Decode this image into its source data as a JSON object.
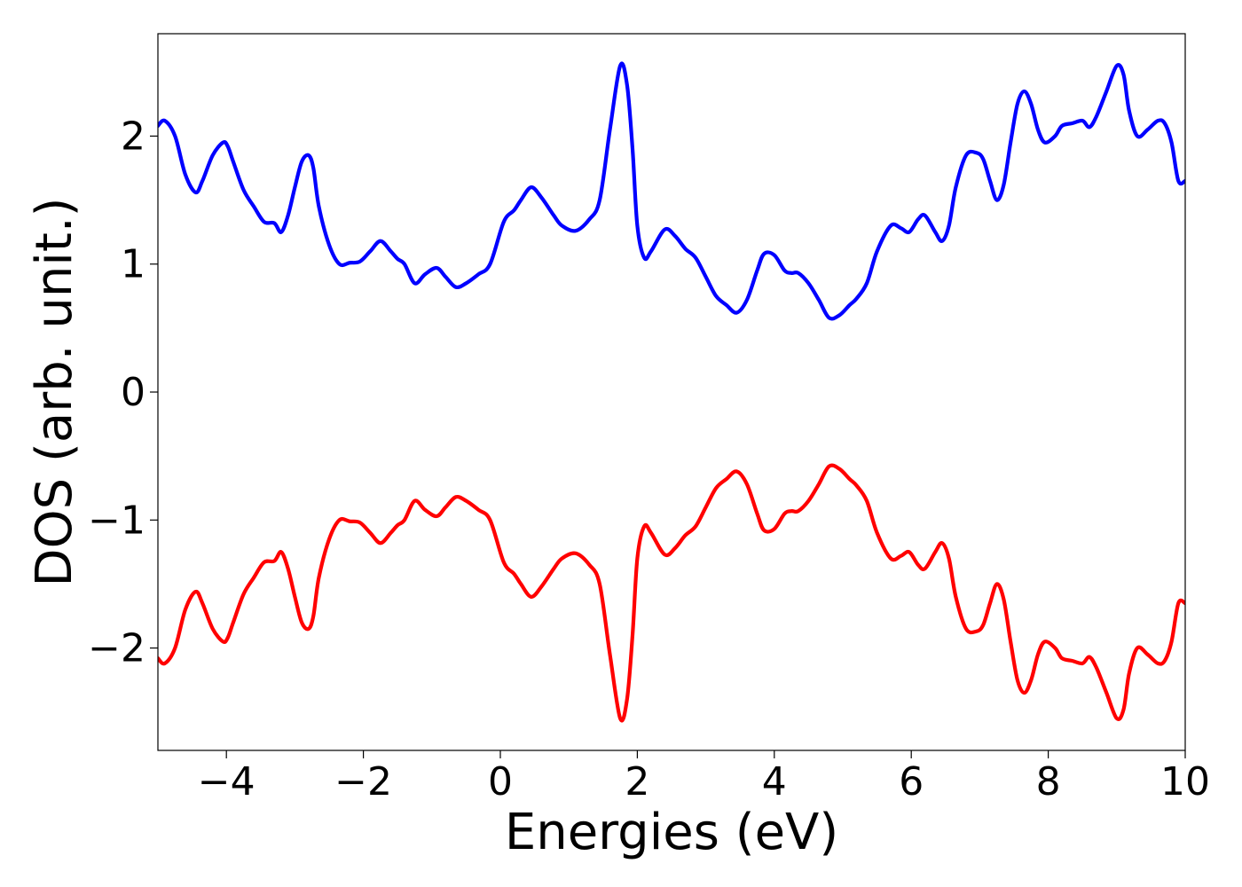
{
  "chart_data": {
    "type": "line",
    "xlabel": "Energies (eV)",
    "ylabel": "DOS (arb. unit.)",
    "xlim": [
      -5,
      10
    ],
    "ylim": [
      -2.8,
      2.8
    ],
    "xticks": [
      -4,
      -2,
      0,
      2,
      4,
      6,
      8,
      10
    ],
    "xtick_labels": [
      "−4",
      "−2",
      "0",
      "2",
      "4",
      "6",
      "8",
      "10"
    ],
    "yticks": [
      -2,
      -1,
      0,
      1,
      2
    ],
    "ytick_labels": [
      "−2",
      "−1",
      "0",
      "1",
      "2"
    ],
    "grid": false,
    "legend": "none",
    "series": [
      {
        "color": "#0000ff",
        "x": [
          -5.0,
          -4.9,
          -4.75,
          -4.6,
          -4.45,
          -4.35,
          -4.2,
          -4.05,
          -3.98,
          -3.9,
          -3.75,
          -3.6,
          -3.45,
          -3.3,
          -3.2,
          -3.1,
          -3.0,
          -2.9,
          -2.8,
          -2.73,
          -2.65,
          -2.5,
          -2.35,
          -2.2,
          -2.05,
          -1.9,
          -1.75,
          -1.6,
          -1.5,
          -1.4,
          -1.25,
          -1.1,
          -0.93,
          -0.8,
          -0.65,
          -0.5,
          -0.32,
          -0.15,
          0.05,
          0.2,
          0.3,
          0.45,
          0.6,
          0.78,
          0.9,
          1.1,
          1.3,
          1.45,
          1.6,
          1.75,
          1.85,
          1.93,
          2.0,
          2.1,
          2.2,
          2.4,
          2.55,
          2.7,
          2.85,
          3.0,
          3.15,
          3.3,
          3.45,
          3.6,
          3.75,
          3.85,
          4.0,
          4.15,
          4.25,
          4.35,
          4.5,
          4.65,
          4.8,
          4.95,
          5.1,
          5.2,
          5.35,
          5.5,
          5.7,
          5.85,
          5.97,
          6.1,
          6.2,
          6.35,
          6.45,
          6.55,
          6.65,
          6.8,
          6.95,
          7.05,
          7.15,
          7.25,
          7.35,
          7.45,
          7.55,
          7.65,
          7.75,
          7.85,
          7.95,
          8.1,
          8.2,
          8.35,
          8.5,
          8.6,
          8.7,
          8.85,
          9.0,
          9.1,
          9.18,
          9.3,
          9.45,
          9.6,
          9.7,
          9.8,
          9.9,
          10.0
        ],
        "y": [
          2.08,
          2.12,
          2.0,
          1.7,
          1.56,
          1.65,
          1.85,
          1.95,
          1.92,
          1.8,
          1.58,
          1.45,
          1.33,
          1.32,
          1.25,
          1.38,
          1.6,
          1.8,
          1.85,
          1.75,
          1.45,
          1.15,
          1.0,
          1.01,
          1.02,
          1.1,
          1.18,
          1.1,
          1.04,
          1.0,
          0.85,
          0.92,
          0.97,
          0.9,
          0.82,
          0.85,
          0.92,
          1.0,
          1.33,
          1.42,
          1.5,
          1.6,
          1.52,
          1.38,
          1.3,
          1.26,
          1.35,
          1.5,
          2.05,
          2.55,
          2.4,
          1.9,
          1.3,
          1.05,
          1.1,
          1.27,
          1.22,
          1.12,
          1.05,
          0.9,
          0.75,
          0.68,
          0.62,
          0.72,
          0.95,
          1.08,
          1.07,
          0.95,
          0.93,
          0.93,
          0.85,
          0.72,
          0.58,
          0.6,
          0.68,
          0.73,
          0.85,
          1.1,
          1.3,
          1.28,
          1.25,
          1.35,
          1.38,
          1.25,
          1.18,
          1.3,
          1.6,
          1.85,
          1.87,
          1.82,
          1.65,
          1.5,
          1.62,
          1.95,
          2.25,
          2.35,
          2.25,
          2.05,
          1.95,
          2.0,
          2.08,
          2.1,
          2.12,
          2.07,
          2.15,
          2.35,
          2.55,
          2.48,
          2.2,
          2.0,
          2.05,
          2.12,
          2.1,
          1.95,
          1.65,
          1.65
        ]
      },
      {
        "color": "#ff0000",
        "x": [
          -5.0,
          -4.9,
          -4.75,
          -4.6,
          -4.45,
          -4.35,
          -4.2,
          -4.05,
          -3.98,
          -3.9,
          -3.75,
          -3.6,
          -3.45,
          -3.3,
          -3.2,
          -3.1,
          -3.0,
          -2.9,
          -2.8,
          -2.73,
          -2.65,
          -2.5,
          -2.35,
          -2.2,
          -2.05,
          -1.9,
          -1.75,
          -1.6,
          -1.5,
          -1.4,
          -1.25,
          -1.1,
          -0.93,
          -0.8,
          -0.65,
          -0.5,
          -0.32,
          -0.15,
          0.05,
          0.2,
          0.3,
          0.45,
          0.6,
          0.78,
          0.9,
          1.1,
          1.3,
          1.45,
          1.6,
          1.75,
          1.85,
          1.93,
          2.0,
          2.1,
          2.2,
          2.4,
          2.55,
          2.7,
          2.85,
          3.0,
          3.15,
          3.3,
          3.45,
          3.6,
          3.75,
          3.85,
          4.0,
          4.15,
          4.25,
          4.35,
          4.5,
          4.65,
          4.8,
          4.95,
          5.1,
          5.2,
          5.35,
          5.5,
          5.7,
          5.85,
          5.97,
          6.1,
          6.2,
          6.35,
          6.45,
          6.55,
          6.65,
          6.8,
          6.95,
          7.05,
          7.15,
          7.25,
          7.35,
          7.45,
          7.55,
          7.65,
          7.75,
          7.85,
          7.95,
          8.1,
          8.2,
          8.35,
          8.5,
          8.6,
          8.7,
          8.85,
          9.0,
          9.1,
          9.18,
          9.3,
          9.45,
          9.6,
          9.7,
          9.8,
          9.9,
          10.0
        ],
        "y": [
          -2.08,
          -2.12,
          -2.0,
          -1.7,
          -1.56,
          -1.65,
          -1.85,
          -1.95,
          -1.92,
          -1.8,
          -1.58,
          -1.45,
          -1.33,
          -1.32,
          -1.25,
          -1.38,
          -1.6,
          -1.8,
          -1.85,
          -1.75,
          -1.45,
          -1.15,
          -1.0,
          -1.01,
          -1.02,
          -1.1,
          -1.18,
          -1.1,
          -1.04,
          -1.0,
          -0.85,
          -0.92,
          -0.97,
          -0.9,
          -0.82,
          -0.85,
          -0.92,
          -1.0,
          -1.33,
          -1.42,
          -1.5,
          -1.6,
          -1.52,
          -1.38,
          -1.3,
          -1.26,
          -1.35,
          -1.5,
          -2.05,
          -2.55,
          -2.4,
          -1.9,
          -1.3,
          -1.05,
          -1.1,
          -1.27,
          -1.22,
          -1.12,
          -1.05,
          -0.9,
          -0.75,
          -0.68,
          -0.62,
          -0.72,
          -0.95,
          -1.08,
          -1.07,
          -0.95,
          -0.93,
          -0.93,
          -0.85,
          -0.72,
          -0.58,
          -0.6,
          -0.68,
          -0.73,
          -0.85,
          -1.1,
          -1.3,
          -1.28,
          -1.25,
          -1.35,
          -1.38,
          -1.25,
          -1.18,
          -1.3,
          -1.6,
          -1.85,
          -1.87,
          -1.82,
          -1.65,
          -1.5,
          -1.62,
          -1.95,
          -2.25,
          -2.35,
          -2.25,
          -2.05,
          -1.95,
          -2.0,
          -2.08,
          -2.1,
          -2.12,
          -2.07,
          -2.15,
          -2.35,
          -2.55,
          -2.48,
          -2.2,
          -2.0,
          -2.05,
          -2.12,
          -2.1,
          -1.95,
          -1.65,
          -1.65
        ]
      }
    ]
  }
}
